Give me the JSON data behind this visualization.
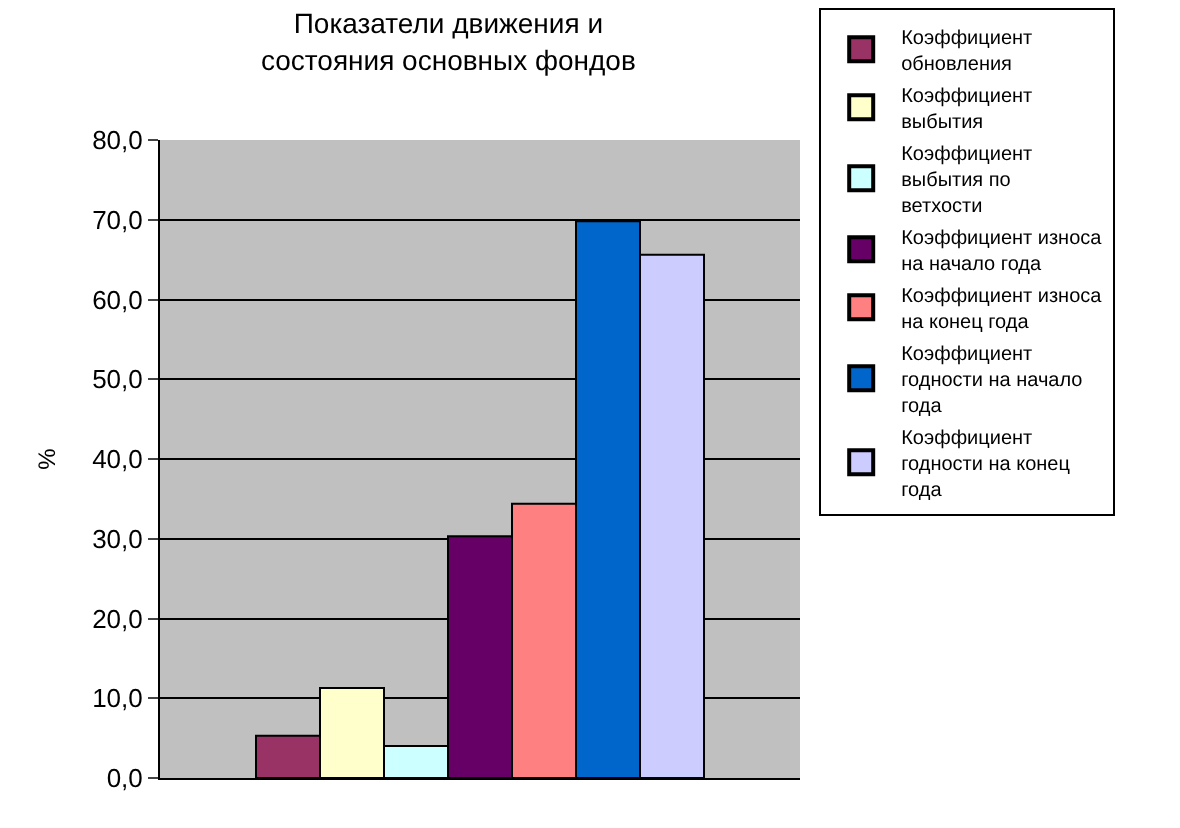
{
  "chart_data": {
    "type": "bar",
    "title": "Показатели движения и состояния основных фондов",
    "ylabel": "%",
    "categories": [
      null
    ],
    "series": [
      {
        "name": "Коэффициент обновления",
        "color": "#993366",
        "values": [
          5.3
        ]
      },
      {
        "name": "Коэффициент выбытия",
        "color": "#ffffcc",
        "values": [
          11.3
        ]
      },
      {
        "name": "Коэффициент выбытия по ветхости",
        "color": "#ccffff",
        "values": [
          4.0
        ]
      },
      {
        "name": "Коэффициент износа на начало года",
        "color": "#660066",
        "values": [
          30.3
        ]
      },
      {
        "name": "Коэффициент износа на конец года",
        "color": "#ff8080",
        "values": [
          34.4
        ]
      },
      {
        "name": "Коэффициент годности на начало года",
        "color": "#0066cc",
        "values": [
          69.8
        ]
      },
      {
        "name": "Коэффициент годности на конец года",
        "color": "#ccccff",
        "values": [
          65.6
        ]
      }
    ],
    "ylim": [
      0,
      80
    ],
    "yticks": [
      {
        "value": 0,
        "label": "0,0"
      },
      {
        "value": 10,
        "label": "10,0"
      },
      {
        "value": 20,
        "label": "20,0"
      },
      {
        "value": 30,
        "label": "30,0"
      },
      {
        "value": 40,
        "label": "40,0"
      },
      {
        "value": 50,
        "label": "50,0"
      },
      {
        "value": 60,
        "label": "60,0"
      },
      {
        "value": 70,
        "label": "70,0"
      },
      {
        "value": 80,
        "label": "80,0"
      }
    ],
    "grid": "y",
    "legend": "right"
  }
}
